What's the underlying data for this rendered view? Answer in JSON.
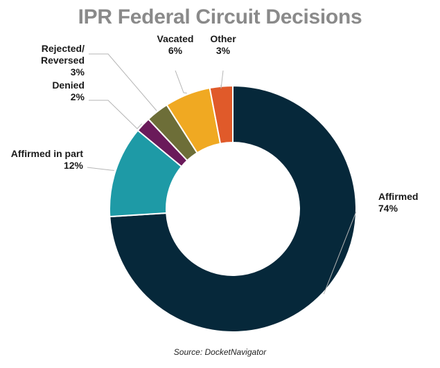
{
  "chart_data": {
    "type": "pie",
    "title": "IPR Federal Circuit Decisions",
    "source": "Source: DocketNavigator",
    "slices": [
      {
        "name": "Affirmed",
        "value": 74,
        "value_label": "74%",
        "color": "#06283a"
      },
      {
        "name": "Affirmed in part",
        "value": 12,
        "value_label": "12%",
        "color": "#1e9aa6"
      },
      {
        "name": "Denied",
        "value": 2,
        "value_label": "2%",
        "color": "#6a1a5a"
      },
      {
        "name": "Rejected/ Reversed",
        "value": 3,
        "value_label": "3%",
        "color": "#6d6e38"
      },
      {
        "name": "Vacated",
        "value": 6,
        "value_label": "6%",
        "color": "#f0a922"
      },
      {
        "name": "Other",
        "value": 3,
        "value_label": "3%",
        "color": "#e05a2a"
      }
    ]
  }
}
